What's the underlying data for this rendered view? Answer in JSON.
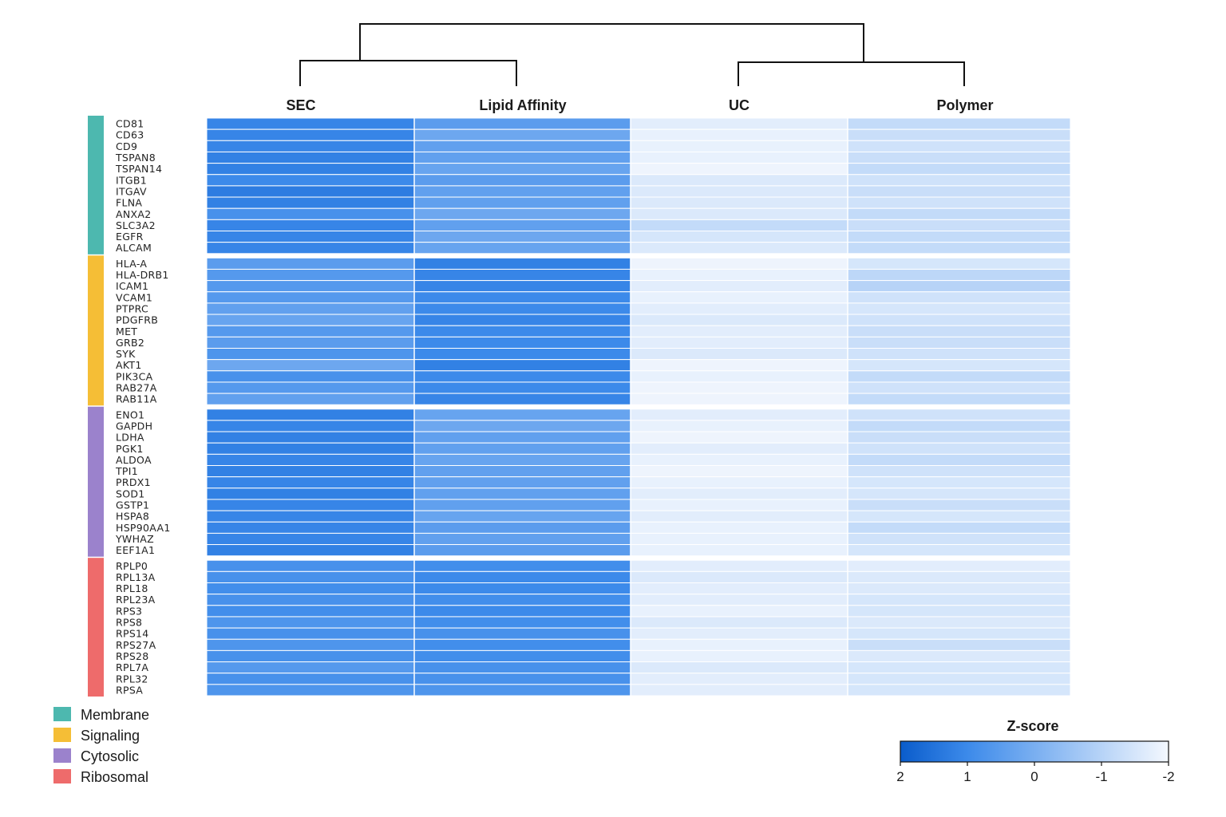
{
  "chart_data": {
    "type": "heatmap",
    "columns": [
      "SEC",
      "Lipid Affinity",
      "UC",
      "Polymer"
    ],
    "groups": [
      {
        "name": "Membrane",
        "color": "#4DB8AF",
        "rows": [
          "CD81",
          "CD63",
          "CD9",
          "TSPAN8",
          "TSPAN14",
          "ITGB1",
          "ITGAV",
          "FLNA",
          "ANXA2",
          "SLC3A2",
          "EGFR",
          "ALCAM"
        ]
      },
      {
        "name": "Signaling",
        "color": "#F5BE36",
        "rows": [
          "HLA-A",
          "HLA-DRB1",
          "ICAM1",
          "VCAM1",
          "PTPRC",
          "PDGFRB",
          "MET",
          "GRB2",
          "SYK",
          "AKT1",
          "PIK3CA",
          "RAB27A",
          "RAB11A"
        ]
      },
      {
        "name": "Cytosolic",
        "color": "#9B82CC",
        "rows": [
          "ENO1",
          "GAPDH",
          "LDHA",
          "PGK1",
          "ALDOA",
          "TPI1",
          "PRDX1",
          "SOD1",
          "GSTP1",
          "HSPA8",
          "HSP90AA1",
          "YWHAZ",
          "EEF1A1"
        ]
      },
      {
        "name": "Ribosomal",
        "color": "#EE6B6B",
        "rows": [
          "RPLP0",
          "RPL13A",
          "RPL18",
          "RPL23A",
          "RPS3",
          "RPS8",
          "RPS14",
          "RPS27A",
          "RPS28",
          "RPL7A",
          "RPL32",
          "RPSA"
        ]
      }
    ],
    "values": [
      [
        1.1,
        0.5,
        -1.7,
        -1.2
      ],
      [
        1.1,
        0.2,
        -1.8,
        -1.3
      ],
      [
        1.1,
        0.4,
        -1.8,
        -1.4
      ],
      [
        1.2,
        0.4,
        -1.8,
        -1.3
      ],
      [
        1.2,
        0.3,
        -1.9,
        -1.2
      ],
      [
        1.0,
        0.5,
        -1.6,
        -1.4
      ],
      [
        1.3,
        0.4,
        -1.6,
        -1.3
      ],
      [
        1.2,
        0.4,
        -1.6,
        -1.4
      ],
      [
        0.8,
        0.2,
        -1.6,
        -1.2
      ],
      [
        1.1,
        0.4,
        -1.2,
        -1.3
      ],
      [
        1.1,
        0.2,
        -1.5,
        -1.2
      ],
      [
        1.1,
        0.3,
        -1.6,
        -1.2
      ],
      [
        0.5,
        1.2,
        -1.9,
        -1.5
      ],
      [
        0.6,
        1.1,
        -1.8,
        -1.1
      ],
      [
        0.6,
        1.1,
        -1.7,
        -1.0
      ],
      [
        0.6,
        1.0,
        -1.8,
        -1.4
      ],
      [
        0.4,
        1.0,
        -1.7,
        -1.5
      ],
      [
        0.3,
        1.1,
        -1.6,
        -1.4
      ],
      [
        0.6,
        1.0,
        -1.7,
        -1.3
      ],
      [
        0.5,
        1.0,
        -1.7,
        -1.3
      ],
      [
        0.7,
        1.0,
        -1.6,
        -1.4
      ],
      [
        0.2,
        1.2,
        -1.9,
        -1.5
      ],
      [
        0.8,
        1.0,
        -1.8,
        -1.2
      ],
      [
        0.6,
        1.0,
        -1.9,
        -1.4
      ],
      [
        0.4,
        1.1,
        -1.9,
        -1.2
      ],
      [
        1.2,
        0.3,
        -1.7,
        -1.4
      ],
      [
        1.1,
        0.2,
        -1.8,
        -1.2
      ],
      [
        1.2,
        0.4,
        -1.9,
        -1.3
      ],
      [
        1.2,
        0.4,
        -1.7,
        -1.4
      ],
      [
        1.1,
        0.3,
        -1.8,
        -1.2
      ],
      [
        1.2,
        0.4,
        -1.9,
        -1.4
      ],
      [
        1.1,
        0.4,
        -1.8,
        -1.5
      ],
      [
        1.2,
        0.4,
        -1.7,
        -1.5
      ],
      [
        1.1,
        0.4,
        -1.8,
        -1.3
      ],
      [
        1.1,
        0.3,
        -1.7,
        -1.5
      ],
      [
        1.1,
        0.5,
        -1.8,
        -1.2
      ],
      [
        1.1,
        0.4,
        -1.8,
        -1.4
      ],
      [
        1.2,
        0.5,
        -1.8,
        -1.5
      ],
      [
        0.8,
        0.9,
        -1.7,
        -1.7
      ],
      [
        0.8,
        1.0,
        -1.6,
        -1.6
      ],
      [
        0.9,
        1.0,
        -1.7,
        -1.6
      ],
      [
        0.8,
        0.9,
        -1.7,
        -1.5
      ],
      [
        0.9,
        1.0,
        -1.8,
        -1.5
      ],
      [
        0.7,
        0.9,
        -1.6,
        -1.6
      ],
      [
        0.8,
        0.8,
        -1.7,
        -1.5
      ],
      [
        0.7,
        0.9,
        -1.8,
        -1.3
      ],
      [
        0.8,
        0.9,
        -1.8,
        -1.6
      ],
      [
        0.6,
        0.8,
        -1.6,
        -1.5
      ],
      [
        0.8,
        0.8,
        -1.7,
        -1.5
      ],
      [
        0.7,
        0.7,
        -1.7,
        -1.5
      ]
    ],
    "colorbar": {
      "title": "Z-score",
      "ticks": [
        "2",
        "1",
        "0",
        "-1",
        "-2"
      ],
      "range": [
        2,
        -2
      ],
      "low_color": "#F4F8FE",
      "mid_color": "#3C8AEA",
      "high_color": "#0A5CCB"
    },
    "dendrogram": "SEC and Lipid Affinity cluster together; UC and Polymer cluster together",
    "legend_placement": "bottom-left",
    "colorbar_placement": "bottom-right"
  }
}
